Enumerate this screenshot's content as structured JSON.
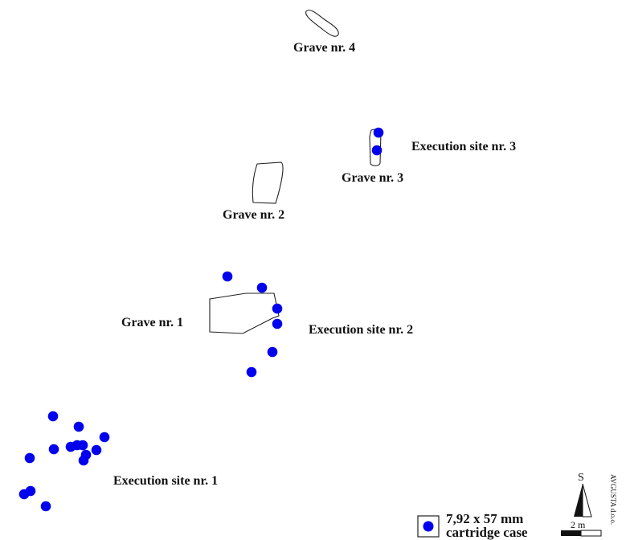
{
  "colors": {
    "cartridge": "#0000ee",
    "outline": "#222222",
    "text": "#111111"
  },
  "labels": {
    "grave_1": "Grave nr. 1",
    "grave_2": "Grave nr. 2",
    "grave_3": "Grave nr. 3",
    "grave_4": "Grave nr. 4",
    "execution_site_1": "Execution site nr. 1",
    "execution_site_2": "Execution site nr. 2",
    "execution_site_3": "Execution site nr. 3"
  },
  "legend": {
    "line1": "7,92 x 57 mm",
    "line2": "cartridge case"
  },
  "north_arrow": {
    "letter": "S"
  },
  "scale_bar": {
    "label": "2 m"
  },
  "credit": "AVGUSTA d.o.o."
}
